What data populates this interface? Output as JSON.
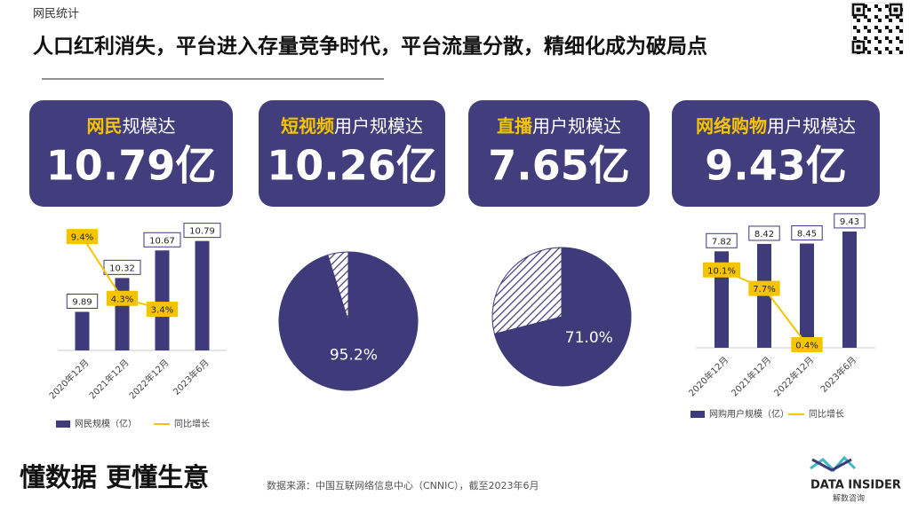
{
  "header": {
    "section": "网民统计",
    "title": "人口红利消失，平台进入存量竞争时代，平台流量分散，精细化成为破局点"
  },
  "cards": [
    {
      "highlight": "网民",
      "label": "规模达",
      "value": "10.79亿"
    },
    {
      "highlight": "短视频",
      "label": "用户规模达",
      "value": "10.26亿"
    },
    {
      "highlight": "直播",
      "label": "用户规模达",
      "value": "7.65亿"
    },
    {
      "highlight": "网络购物",
      "label": "用户规模达",
      "value": "9.43亿"
    }
  ],
  "chart_data": [
    {
      "type": "bar",
      "categories": [
        "2020年12月",
        "2021年12月",
        "2022年12月",
        "2023年6月"
      ],
      "ylim": [
        9.4,
        11
      ],
      "y2lim": [
        0,
        10.4
      ],
      "series": [
        {
          "name": "网民规模（亿）",
          "color": "#3f3b7a",
          "values": [
            9.89,
            10.32,
            10.67,
            10.79
          ]
        },
        {
          "name": "同比增长",
          "color": "#f5c400",
          "axis": "y2",
          "values": [
            9.4,
            4.3,
            3.4,
            null
          ],
          "value_labels": [
            "9.4%",
            "4.3%",
            "3.4%",
            null
          ]
        }
      ]
    },
    {
      "type": "pie",
      "values": [
        95.2,
        4.8
      ],
      "value_labels": [
        "95.2%",
        null
      ],
      "colors": [
        "#3f3b7a",
        "hatch"
      ]
    },
    {
      "type": "pie",
      "values": [
        71.0,
        29.0
      ],
      "value_labels": [
        "71.0%",
        null
      ],
      "colors": [
        "#3f3b7a",
        "hatch"
      ]
    },
    {
      "type": "bar",
      "categories": [
        "2020年12月",
        "2021年12月",
        "2022年12月",
        "2023年6月"
      ],
      "ylim": [
        0,
        10
      ],
      "y2lim": [
        0,
        16
      ],
      "series": [
        {
          "name": "网购用户规模（亿）",
          "color": "#3f3b7a",
          "values": [
            7.82,
            8.42,
            8.45,
            9.43
          ]
        },
        {
          "name": "同比增长",
          "color": "#f5c400",
          "axis": "y2",
          "values": [
            10.1,
            7.7,
            0.4,
            null
          ],
          "value_labels": [
            "10.1%",
            "7.7%",
            "0.4%",
            null
          ]
        }
      ]
    }
  ],
  "footer": {
    "slogan": "懂数据 更懂生意",
    "source": "数据来源：中国互联网络信息中心（CNNIC），截至2023年6月",
    "logo": "DATA INSIDER",
    "logo_sub": "解数咨询"
  }
}
